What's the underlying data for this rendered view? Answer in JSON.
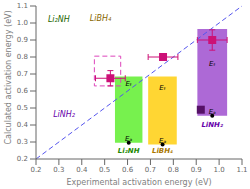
{
  "chart_data": {
    "type": "scatter",
    "x_label": "Experimental activation energy (eV)",
    "y_label": "Calculated activation energy (eV)",
    "xlim": [
      0.2,
      1.1
    ],
    "ylim": [
      0.2,
      1.1
    ],
    "xticks": [
      0.2,
      0.3,
      0.4,
      0.5,
      0.6,
      0.7,
      0.8,
      0.9,
      {
        "value": 1.0,
        "label": "1.0"
      },
      1.1
    ],
    "yticks": [
      0.2,
      0.3,
      0.4,
      0.5,
      0.6,
      0.7,
      0.8,
      0.9,
      {
        "value": 1.0,
        "label": "1.0"
      },
      1.1
    ],
    "grid": false,
    "marker": "square",
    "x": [
      0.525,
      0.755,
      0.97,
      0.92
    ],
    "values": [
      0.675,
      0.8,
      0.9,
      0.49
    ],
    "xerr": [
      0.065,
      0.065,
      0.065,
      0.0
    ],
    "yerr": [
      0.045,
      0.0,
      0.06,
      0.0
    ],
    "colors": [
      "#cc1177",
      "#cc1177",
      "#cc1177",
      "#551166"
    ],
    "reference_line": {
      "x": [
        0.2,
        1.1
      ],
      "y": [
        0.2,
        1.1
      ],
      "color": "#5555ee",
      "line_style": "dashed"
    },
    "bars": [
      {
        "name": "Li₂NH",
        "x0": 0.545,
        "x1": 0.665,
        "low": 0.295,
        "high": 0.685,
        "color": "#55ee22",
        "name_x": 0.605,
        "name_y": 0.265,
        "name_color": "#228800"
      },
      {
        "name": "LiBH₄",
        "x0": 0.69,
        "x1": 0.815,
        "low": 0.285,
        "high": 0.685,
        "color": "#ffcc00",
        "name_x": 0.753,
        "name_y": 0.265,
        "name_color": "#aa7700"
      },
      {
        "name": "LiNH₂",
        "x0": 0.905,
        "x1": 1.035,
        "low": 0.455,
        "high": 0.965,
        "color": "#9944cc",
        "name_x": 0.97,
        "name_y": 0.415,
        "name_color": "#6600aa"
      }
    ],
    "dots": {
      "x": [
        0.605,
        0.753,
        0.97
      ],
      "y": [
        0.295,
        0.285,
        0.455
      ]
    },
    "box": {
      "x0": 0.455,
      "y0": 0.63,
      "w": 0.115,
      "h": 0.175,
      "color": "#dd44bb",
      "line_style": "dashed"
    },
    "bar_labels": [
      {
        "x": 0.605,
        "y": 0.64,
        "text": "Eₜ"
      },
      {
        "x": 0.753,
        "y": 0.62,
        "text": "Eₜ"
      },
      {
        "x": 0.97,
        "y": 0.76,
        "text": "Eₜ"
      },
      {
        "x": 0.605,
        "y": 0.315,
        "text": "Eₐ"
      },
      {
        "x": 0.753,
        "y": 0.305,
        "text": "Eₐ"
      },
      {
        "x": 0.97,
        "y": 0.475,
        "text": "Eₐ"
      }
    ],
    "crystal_labels": [
      {
        "x": 0.252,
        "y": 1.005,
        "text": "Li₂NH",
        "color": "#226600"
      },
      {
        "x": 0.435,
        "y": 1.01,
        "text": "LiBH₄",
        "color": "#886600"
      },
      {
        "x": 0.275,
        "y": 0.445,
        "text": "LiNH₂",
        "color": "#6600aa"
      }
    ]
  }
}
